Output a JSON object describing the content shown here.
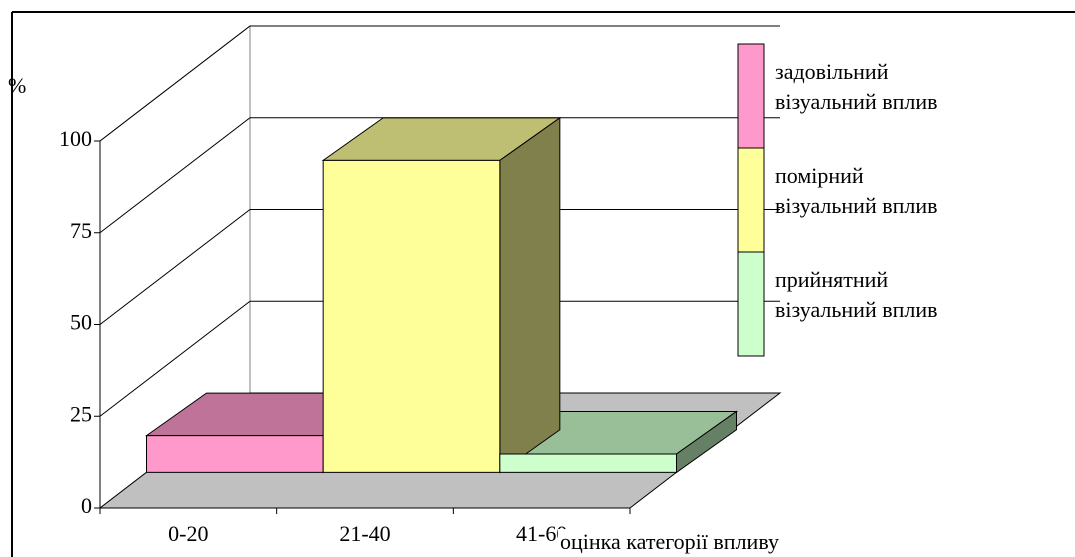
{
  "chart_data": {
    "type": "bar3d",
    "y_label": "%",
    "x_label": "оцінка категорії впливу",
    "categories": [
      "0-20",
      "21-40",
      "41-60"
    ],
    "series": [
      {
        "name": "задовільний візуальний вплив",
        "color": "#ff99cc",
        "values": [
          10,
          null,
          null
        ]
      },
      {
        "name": "помірний візуальний вплив",
        "color": "#ffff99",
        "values": [
          null,
          85,
          null
        ]
      },
      {
        "name": "прийнятний візуальний вплив",
        "color": "#ccffcc",
        "values": [
          null,
          null,
          5
        ]
      }
    ],
    "ylim": [
      0,
      100
    ],
    "yticks": [
      0,
      25,
      50,
      75,
      100
    ],
    "grid": true,
    "legend": "right"
  }
}
